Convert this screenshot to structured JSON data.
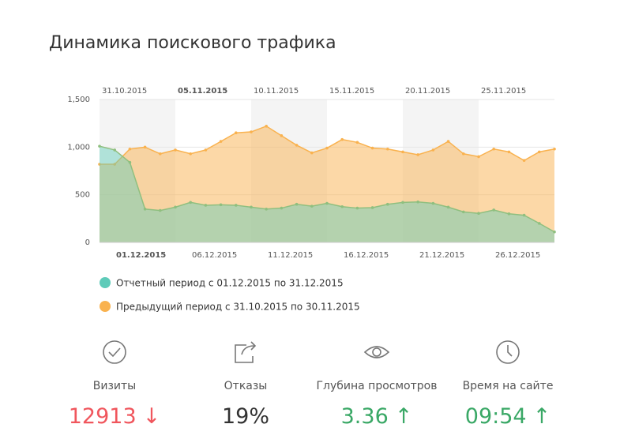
{
  "chart_data": {
    "type": "area",
    "title": "Динамика поискового трафика",
    "xticks_top": [
      "31.10.2015",
      "05.11.2015",
      "10.11.2015",
      "15.11.2015",
      "20.11.2015",
      "25.11.2015"
    ],
    "xticks_bottom": [
      "01.12.2015",
      "06.12.2015",
      "11.12.2015",
      "16.12.2015",
      "21.12.2015",
      "26.12.2015"
    ],
    "bold_tick_top": 1,
    "bold_tick_bottom": 0,
    "ylim": [
      0,
      1500
    ],
    "yticks": [
      0,
      500,
      {
        "value": 1000,
        "label": "1,000"
      },
      {
        "value": 1500,
        "label": "1,500"
      }
    ],
    "grid": true,
    "series": [
      {
        "name": "Отчетный период с 01.12.2015 по 31.12.2015",
        "color": "#5ecbb9",
        "values": [
          1010,
          970,
          840,
          350,
          335,
          370,
          420,
          390,
          395,
          390,
          370,
          350,
          360,
          400,
          380,
          410,
          375,
          360,
          365,
          400,
          420,
          425,
          410,
          370,
          320,
          305,
          340,
          300,
          285,
          200,
          110
        ]
      },
      {
        "name": "Предыдущий период с 31.10.2015 по 30.11.2015",
        "color": "#f9b24f",
        "values": [
          820,
          820,
          980,
          1000,
          930,
          970,
          930,
          970,
          1060,
          1150,
          1160,
          1220,
          1120,
          1020,
          940,
          990,
          1080,
          1050,
          990,
          980,
          950,
          920,
          970,
          1060,
          930,
          900,
          980,
          950,
          860,
          950,
          980
        ]
      }
    ]
  },
  "metrics": [
    {
      "label": "Визиты",
      "value": "12913",
      "trend": "↓",
      "color": "#f0565d"
    },
    {
      "label": "Отказы",
      "value": "19%",
      "color": "#333333"
    },
    {
      "label": "Глубина просмотров",
      "value": "3.36",
      "trend": "↑",
      "color": "#3aa866"
    },
    {
      "label": "Время на сайте",
      "value": "09:54",
      "trend": "↑",
      "color": "#3aa866"
    }
  ]
}
